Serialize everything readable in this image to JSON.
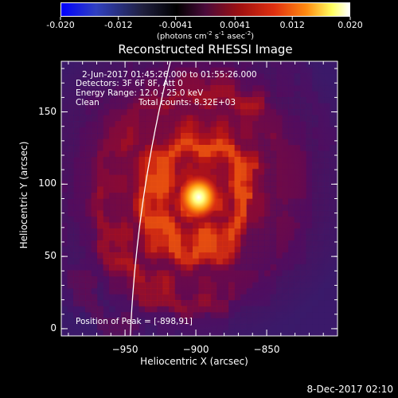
{
  "colorbar": {
    "ticks": [
      "-0.020",
      "-0.012",
      "-0.0041",
      "0.0041",
      "0.012",
      "0.020"
    ],
    "units_main": "(photons cm",
    "units_exp1": "-2",
    "units_mid1": " s",
    "units_exp2": "-1",
    "units_mid2": " asec",
    "units_exp3": "-2",
    "units_end": ")"
  },
  "title": "Reconstructed RHESSI Image",
  "info": {
    "time_range": "2-Jun-2017 01:45:26.000 to 01:55:26.000",
    "detectors": "Detectors: 3F 6F 8F, Att 0",
    "energy": "Energy Range: 12.0 - 25.0 keV",
    "clean": "Clean",
    "counts": "Total counts: 8.32E+03"
  },
  "peak_label": "Position of Peak = [-898,91]",
  "footer": "8-Dec-2017 02:10",
  "chart_data": {
    "type": "heatmap",
    "xlabel": "Heliocentric X (arcsec)",
    "ylabel": "Heliocentric Y (arcsec)",
    "xlim": [
      -995,
      -800
    ],
    "ylim": [
      -5,
      185
    ],
    "x_ticks": [
      -950,
      -900,
      -850
    ],
    "y_ticks": [
      0,
      50,
      100,
      150
    ],
    "peak": [
      -898,
      91
    ],
    "colorbar_range": [
      -0.02,
      0.02
    ],
    "limb_line": true
  },
  "colors": {
    "background": "#000000",
    "text": "#ffffff"
  }
}
